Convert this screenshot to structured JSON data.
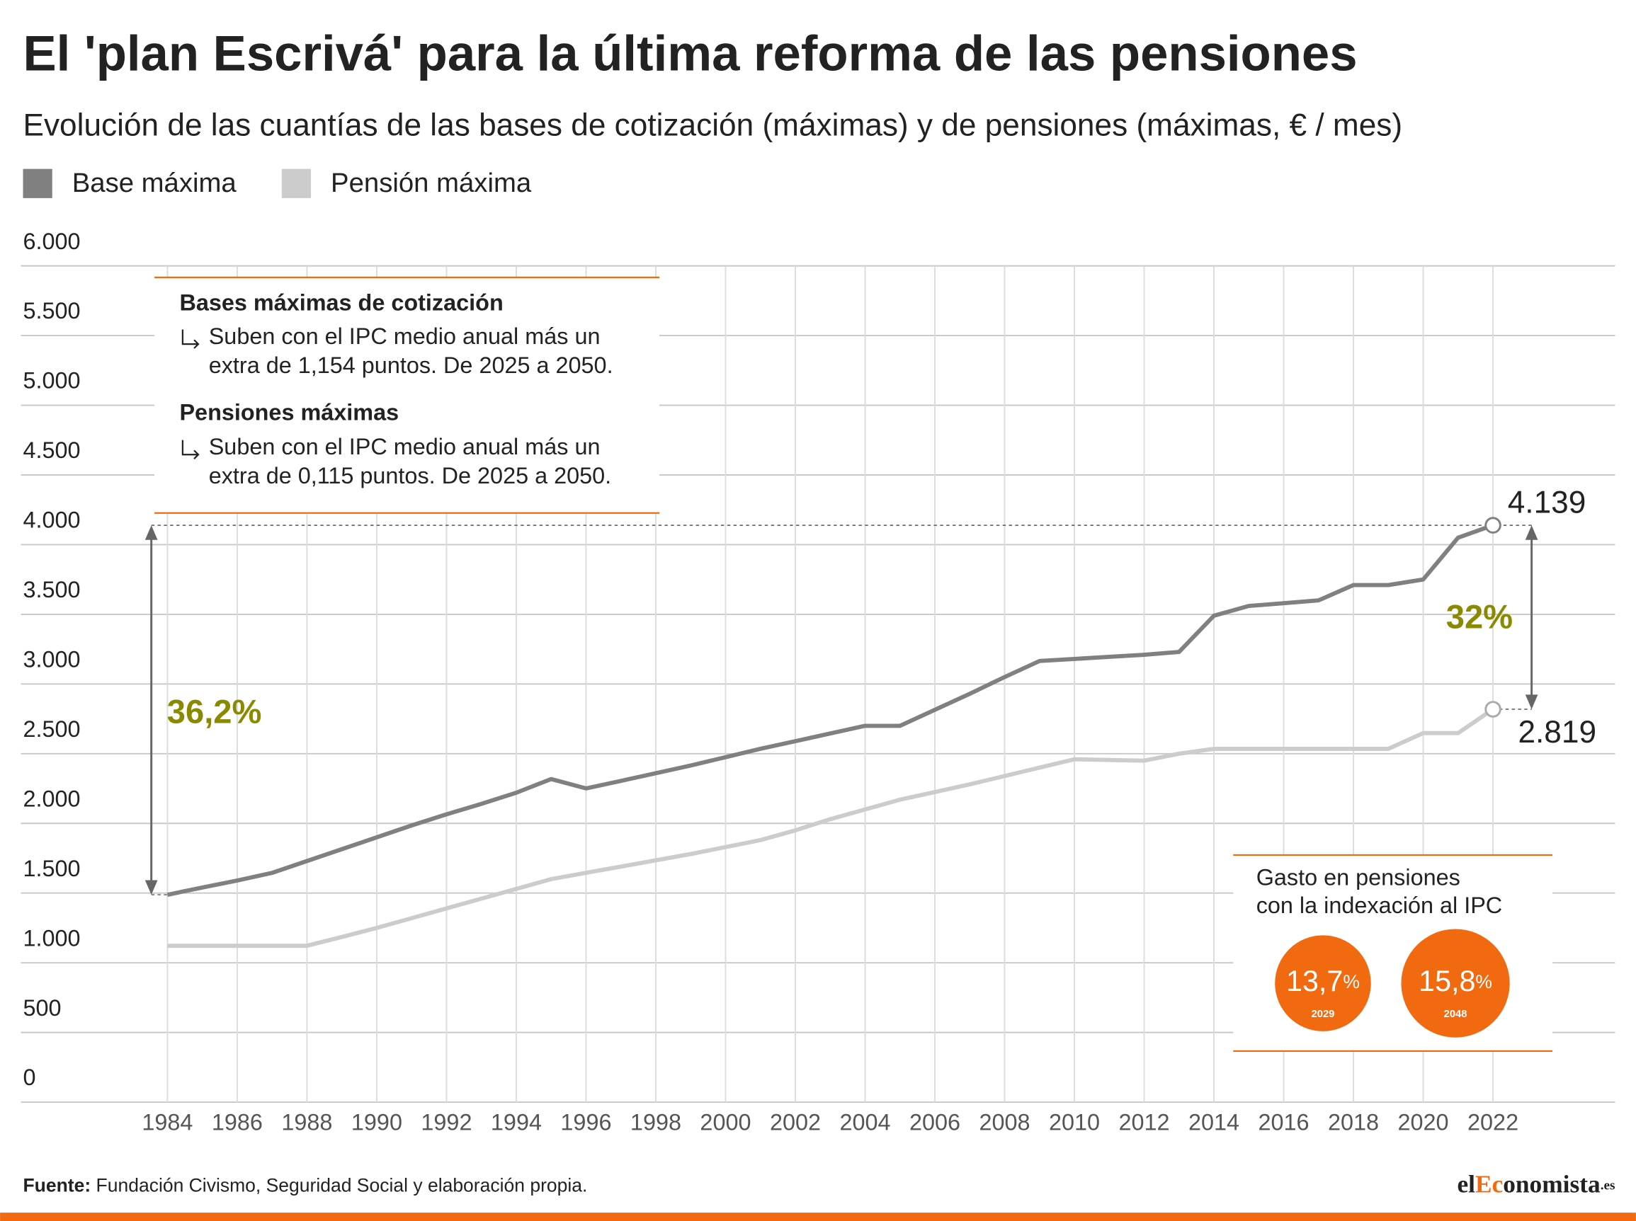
{
  "chart_data": {
    "type": "line",
    "title": "El 'plan Escrivá' para la última reforma de las pensiones",
    "subtitle": "Evolución de las cuantías de las bases de cotización (máximas) y de pensiones (máximas, € / mes)",
    "x": [
      1984,
      1985,
      1986,
      1987,
      1988,
      1989,
      1990,
      1991,
      1992,
      1993,
      1994,
      1995,
      1996,
      1997,
      1998,
      1999,
      2000,
      2001,
      2002,
      2003,
      2004,
      2005,
      2006,
      2007,
      2008,
      2009,
      2010,
      2011,
      2012,
      2013,
      2014,
      2015,
      2016,
      2017,
      2018,
      2019,
      2020,
      2021,
      2022
    ],
    "series": [
      {
        "name": "Base máxima",
        "color": "#808080",
        "values": [
          1488,
          1540,
          1590,
          1645,
          1730,
          1815,
          1900,
          1985,
          2065,
          2140,
          2220,
          2318,
          2251,
          2305,
          2360,
          2415,
          2475,
          2535,
          2590,
          2645,
          2700,
          2700,
          2815,
          2930,
          3050,
          3165,
          3180,
          3195,
          3210,
          3230,
          3490,
          3560,
          3580,
          3600,
          3710,
          3710,
          3750,
          4050,
          4139
        ]
      },
      {
        "name": "Pensión máxima",
        "color": "#cccccc",
        "values": [
          1122,
          1122,
          1122,
          1122,
          1122,
          1185,
          1250,
          1320,
          1390,
          1460,
          1530,
          1600,
          1645,
          1690,
          1735,
          1780,
          1830,
          1880,
          1950,
          2030,
          2100,
          2170,
          2225,
          2280,
          2340,
          2400,
          2460,
          2455,
          2450,
          2500,
          2535,
          2535,
          2535,
          2535,
          2535,
          2535,
          2648,
          2648,
          2819
        ]
      }
    ],
    "end_labels": [
      {
        "value": 4139,
        "label": "4.139"
      },
      {
        "value": 2819,
        "label": "2.819"
      }
    ],
    "annotations": [
      "36,2%",
      "32%"
    ],
    "annotation_color": "#8a8a00",
    "xlim": [
      1979.8,
      2025.5
    ],
    "xticks": [
      1984,
      1986,
      1988,
      1990,
      1992,
      1994,
      1996,
      1998,
      2000,
      2002,
      2004,
      2006,
      2008,
      2010,
      2012,
      2014,
      2016,
      2018,
      2020,
      2022
    ],
    "ylim": [
      0,
      6000
    ],
    "yticks": [
      0,
      {
        "value": 500,
        "label": "500"
      },
      {
        "value": 1000,
        "label": "1.000"
      },
      {
        "value": 1500,
        "label": "1.500"
      },
      {
        "value": 2000,
        "label": "2.000"
      },
      {
        "value": 2500,
        "label": "2.500"
      },
      {
        "value": 3000,
        "label": "3.000"
      },
      {
        "value": 3500,
        "label": "3.500"
      },
      {
        "value": 4000,
        "label": "4.000"
      },
      {
        "value": 4500,
        "label": "4.500"
      },
      {
        "value": 5000,
        "label": "5.000"
      },
      {
        "value": 5500,
        "label": "5.500"
      },
      {
        "value": 6000,
        "label": "6.000"
      }
    ],
    "grid": true,
    "legend": "top-left"
  },
  "info_box": {
    "heading1": "Bases máximas de cotización",
    "text1": [
      "Suben con el IPC medio anual más un",
      "extra de 1,154 puntos. De 2025 a 2050."
    ],
    "heading2": "Pensiones máximas",
    "text2": [
      "Suben con el IPC medio anual más un",
      "extra de 0,115 puntos. De 2025 a 2050."
    ]
  },
  "spending_box": {
    "title": [
      "Gasto en pensiones",
      "con la indexación al IPC"
    ],
    "items": [
      {
        "value": "13,7",
        "unit": "%",
        "year": "2029"
      },
      {
        "value": "15,8",
        "unit": "%",
        "year": "2048"
      }
    ]
  },
  "source": {
    "label": "Fuente:",
    "text": "Fundación Civismo, Seguridad Social y elaboración propia."
  },
  "logo": {
    "a": "el",
    "b": "Ec",
    "c": "onomista",
    "d": ".es"
  }
}
